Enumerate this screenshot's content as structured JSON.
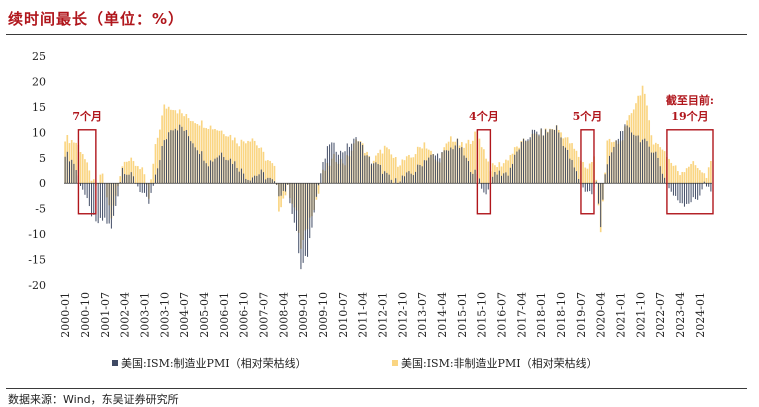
{
  "title": "续时间最长（单位：%）",
  "source": "数据来源：Wind，东吴证券研究所",
  "colors": {
    "manufacturing": "#3f4a64",
    "non_manufacturing": "#fad582",
    "highlight": "#b0161c",
    "axis": "#333333"
  },
  "chart_data": {
    "type": "bar",
    "x_tick_labels": [
      "2000-01",
      "2000-10",
      "2001-07",
      "2002-04",
      "2003-01",
      "2003-10",
      "2004-07",
      "2005-04",
      "2006-01",
      "2006-10",
      "2007-07",
      "2008-04",
      "2009-01",
      "2009-10",
      "2010-07",
      "2011-04",
      "2012-01",
      "2012-10",
      "2013-07",
      "2014-04",
      "2015-01",
      "2015-10",
      "2016-07",
      "2017-04",
      "2018-01",
      "2018-10",
      "2019-07",
      "2020-04",
      "2021-01",
      "2021-10",
      "2022-07",
      "2023-04",
      "2024-01"
    ],
    "ylim": [
      -20,
      25
    ],
    "y_ticks": [
      -20,
      -15,
      -10,
      -5,
      0,
      5,
      10,
      15,
      20,
      25
    ],
    "x_range": [
      "2000-01",
      "2024-06"
    ],
    "series": [
      {
        "name": "美国:ISM:制造业PMI（相对荣枯线）",
        "color": "#3f4a64",
        "segments": [
          [
            "2000-01",
            6
          ],
          [
            "2000-05",
            4
          ],
          [
            "2000-08",
            0
          ],
          [
            "2000-09",
            -1
          ],
          [
            "2000-12",
            -5
          ],
          [
            "2001-03",
            -8
          ],
          [
            "2001-07",
            -7
          ],
          [
            "2001-10",
            -9
          ],
          [
            "2002-01",
            -2
          ],
          [
            "2002-03",
            3
          ],
          [
            "2002-08",
            1
          ],
          [
            "2002-12",
            -2
          ],
          [
            "2003-03",
            -4
          ],
          [
            "2003-06",
            1
          ],
          [
            "2003-09",
            7
          ],
          [
            "2004-01",
            11
          ],
          [
            "2004-06",
            11
          ],
          [
            "2005-01",
            7
          ],
          [
            "2005-06",
            4
          ],
          [
            "2005-12",
            6
          ],
          [
            "2006-06",
            4
          ],
          [
            "2006-12",
            1
          ],
          [
            "2007-06",
            2
          ],
          [
            "2007-12",
            0
          ],
          [
            "2008-02",
            -2
          ],
          [
            "2008-06",
            -1
          ],
          [
            "2008-10",
            -10
          ],
          [
            "2008-12",
            -17
          ],
          [
            "2009-03",
            -14
          ],
          [
            "2009-06",
            -5
          ],
          [
            "2009-09",
            2
          ],
          [
            "2010-01",
            8
          ],
          [
            "2010-06",
            6
          ],
          [
            "2011-02",
            9
          ],
          [
            "2011-06",
            5
          ],
          [
            "2011-12",
            3
          ],
          [
            "2012-06",
            0
          ],
          [
            "2012-09",
            1
          ],
          [
            "2013-03",
            2
          ],
          [
            "2013-09",
            5
          ],
          [
            "2014-06",
            6
          ],
          [
            "2014-11",
            8
          ],
          [
            "2015-05",
            3
          ],
          [
            "2015-09",
            1
          ],
          [
            "2015-11",
            -2
          ],
          [
            "2016-02",
            -1
          ],
          [
            "2016-04",
            2
          ],
          [
            "2016-10",
            2
          ],
          [
            "2017-03",
            7
          ],
          [
            "2017-09",
            10
          ],
          [
            "2018-03",
            10
          ],
          [
            "2018-08",
            11
          ],
          [
            "2019-01",
            6
          ],
          [
            "2019-05",
            2
          ],
          [
            "2019-08",
            -1
          ],
          [
            "2019-12",
            -2
          ],
          [
            "2020-02",
            0
          ],
          [
            "2020-04",
            -8
          ],
          [
            "2020-06",
            2
          ],
          [
            "2020-09",
            6
          ],
          [
            "2021-02",
            11
          ],
          [
            "2021-07",
            10
          ],
          [
            "2021-12",
            8
          ],
          [
            "2022-05",
            6
          ],
          [
            "2022-09",
            1
          ],
          [
            "2022-11",
            -1
          ],
          [
            "2023-02",
            -3
          ],
          [
            "2023-06",
            -4
          ],
          [
            "2023-12",
            -3
          ],
          [
            "2024-03",
            0
          ],
          [
            "2024-06",
            -2
          ]
        ]
      },
      {
        "name": "美国:ISM:非制造业PMI（相对荣枯线）",
        "color": "#fad582",
        "segments": [
          [
            "2000-01",
            9
          ],
          [
            "2000-06",
            8
          ],
          [
            "2000-09",
            6
          ],
          [
            "2000-12",
            2
          ],
          [
            "2001-03",
            -1
          ],
          [
            "2001-06",
            2
          ],
          [
            "2001-10",
            -7
          ],
          [
            "2002-01",
            0
          ],
          [
            "2002-04",
            5
          ],
          [
            "2002-08",
            4
          ],
          [
            "2002-12",
            3
          ],
          [
            "2003-03",
            -3
          ],
          [
            "2003-06",
            7
          ],
          [
            "2003-10",
            15
          ],
          [
            "2004-02",
            15
          ],
          [
            "2004-08",
            13
          ],
          [
            "2005-02",
            12
          ],
          [
            "2005-08",
            11
          ],
          [
            "2006-02",
            10
          ],
          [
            "2006-08",
            8
          ],
          [
            "2007-02",
            9
          ],
          [
            "2007-08",
            5
          ],
          [
            "2007-12",
            3
          ],
          [
            "2008-02",
            -5
          ],
          [
            "2008-06",
            -1
          ],
          [
            "2008-10",
            -6
          ],
          [
            "2008-12",
            -13
          ],
          [
            "2009-04",
            -7
          ],
          [
            "2009-08",
            -2
          ],
          [
            "2009-10",
            2
          ],
          [
            "2010-03",
            5
          ],
          [
            "2010-08",
            4
          ],
          [
            "2011-02",
            9
          ],
          [
            "2011-08",
            4
          ],
          [
            "2012-02",
            7
          ],
          [
            "2012-08",
            4
          ],
          [
            "2013-02",
            5
          ],
          [
            "2013-08",
            8
          ],
          [
            "2014-02",
            4
          ],
          [
            "2014-08",
            9
          ],
          [
            "2015-02",
            7
          ],
          [
            "2015-08",
            10
          ],
          [
            "2016-02",
            3
          ],
          [
            "2016-08",
            4
          ],
          [
            "2017-02",
            7
          ],
          [
            "2017-08",
            9
          ],
          [
            "2018-02",
            10
          ],
          [
            "2018-08",
            11
          ],
          [
            "2019-02",
            8
          ],
          [
            "2019-08",
            4
          ],
          [
            "2019-10",
            3
          ],
          [
            "2020-01",
            5
          ],
          [
            "2020-04",
            -9
          ],
          [
            "2020-07",
            8
          ],
          [
            "2021-01",
            8
          ],
          [
            "2021-06",
            14
          ],
          [
            "2021-11",
            19
          ],
          [
            "2022-04",
            8
          ],
          [
            "2022-08",
            7
          ],
          [
            "2022-12",
            4
          ],
          [
            "2023-04",
            2
          ],
          [
            "2023-09",
            4
          ],
          [
            "2024-01",
            3
          ],
          [
            "2024-04",
            1
          ],
          [
            "2024-06",
            4
          ]
        ]
      }
    ],
    "annotations": [
      {
        "label": "7个月",
        "start": "2000-08",
        "end": "2001-02"
      },
      {
        "label": "4个月",
        "start": "2015-09",
        "end": "2016-01"
      },
      {
        "label": "5个月",
        "start": "2019-08",
        "end": "2019-12"
      },
      {
        "label": "截至目前:",
        "label2": "19个月",
        "start": "2022-11",
        "end": "2024-06"
      }
    ]
  }
}
